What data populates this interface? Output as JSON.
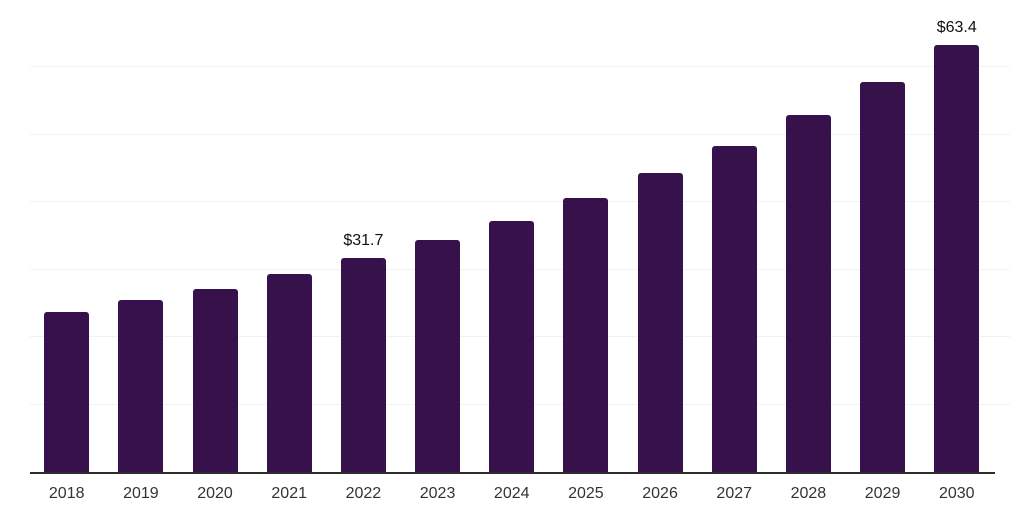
{
  "chart_data": {
    "type": "bar",
    "title": "",
    "xlabel": "",
    "ylabel": "",
    "categories": [
      "2018",
      "2019",
      "2020",
      "2021",
      "2022",
      "2023",
      "2024",
      "2025",
      "2026",
      "2027",
      "2028",
      "2029",
      "2030"
    ],
    "values": [
      23.7,
      25.5,
      27.1,
      29.4,
      31.7,
      34.4,
      37.3,
      40.7,
      44.3,
      48.4,
      52.9,
      57.9,
      63.4
    ],
    "data_labels": [
      "",
      "",
      "",
      "",
      "$31.7",
      "",
      "",
      "",
      "",
      "",
      "",
      "",
      "$63.4"
    ],
    "ylim": [
      0,
      70
    ],
    "gridline_step": 10,
    "grid": "horizontal",
    "legend": "none",
    "colors": {
      "bar": "#36114C",
      "axis": "#2e2e2e",
      "gridline": "#f2f2f2",
      "tick_label": "#333333",
      "value_label": "#111111",
      "background": "#ffffff"
    }
  }
}
